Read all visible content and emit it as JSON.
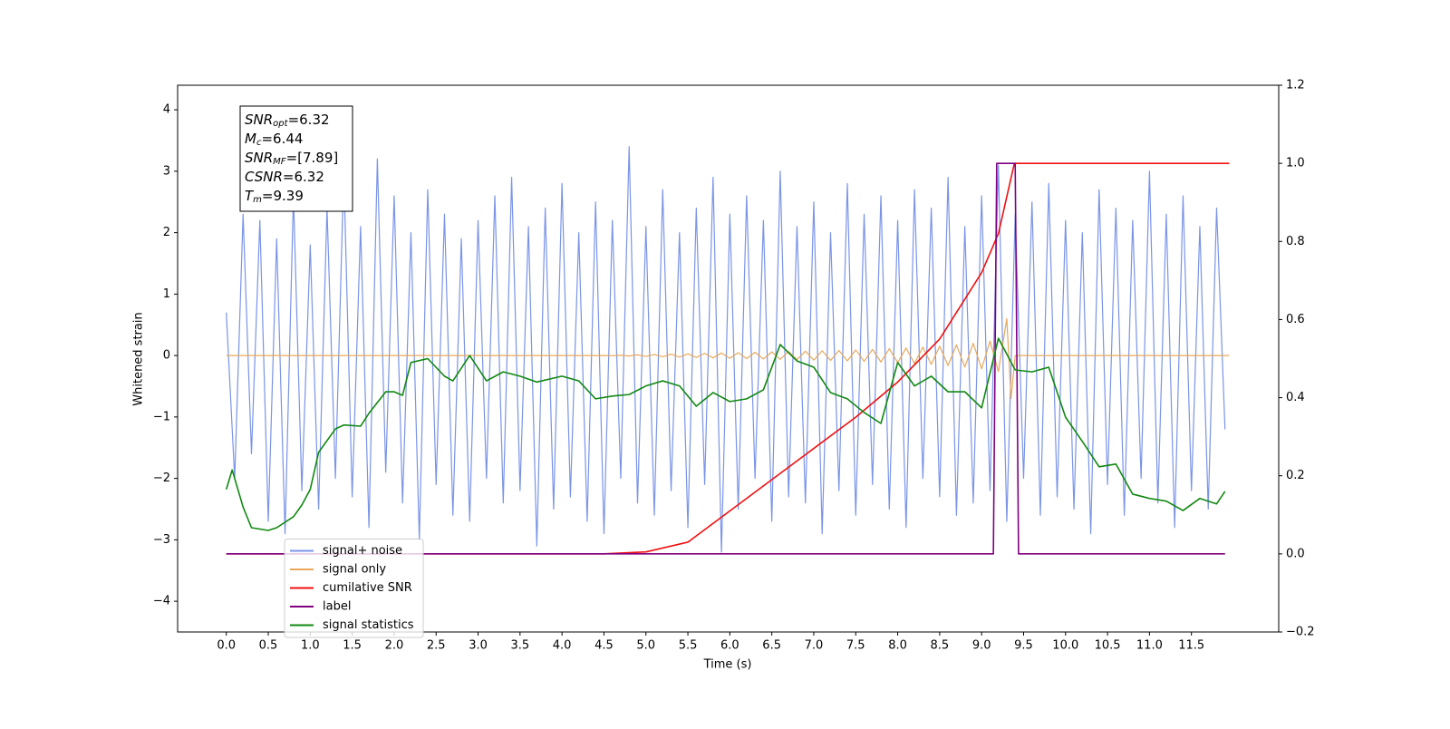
{
  "chart_data": {
    "type": "line",
    "xlabel": "Time (s)",
    "ylabel": "Whitened strain",
    "xlim": [
      -0.58,
      12.54
    ],
    "ylim": [
      -4.5,
      4.4
    ],
    "y2lim": [
      -0.2,
      1.2
    ],
    "xticks": [
      {
        "value": 0,
        "label": "0.0"
      },
      {
        "value": 0.5,
        "label": "0.5"
      },
      {
        "value": 1,
        "label": "1.0"
      },
      {
        "value": 1.5,
        "label": "1.5"
      },
      {
        "value": 2,
        "label": "2.0"
      },
      {
        "value": 2.5,
        "label": "2.5"
      },
      {
        "value": 3,
        "label": "3.0"
      },
      {
        "value": 3.5,
        "label": "3.5"
      },
      {
        "value": 4,
        "label": "4.0"
      },
      {
        "value": 4.5,
        "label": "4.5"
      },
      {
        "value": 5,
        "label": "5.0"
      },
      {
        "value": 5.5,
        "label": "5.5"
      },
      {
        "value": 6,
        "label": "6.0"
      },
      {
        "value": 6.5,
        "label": "6.5"
      },
      {
        "value": 7,
        "label": "7.0"
      },
      {
        "value": 7.5,
        "label": "7.5"
      },
      {
        "value": 8,
        "label": "8.0"
      },
      {
        "value": 8.5,
        "label": "8.5"
      },
      {
        "value": 9,
        "label": "9.0"
      },
      {
        "value": 9.5,
        "label": "9.5"
      },
      {
        "value": 10,
        "label": "10.0"
      },
      {
        "value": 10.5,
        "label": "10.5"
      },
      {
        "value": 11,
        "label": "11.0"
      },
      {
        "value": 11.5,
        "label": "11.5"
      }
    ],
    "yticks": [
      {
        "value": -4,
        "label": "−4"
      },
      {
        "value": -3,
        "label": "−3"
      },
      {
        "value": -2,
        "label": "−2"
      },
      {
        "value": -1,
        "label": "−1"
      },
      0,
      1,
      2,
      3,
      4
    ],
    "y2ticks": [
      {
        "value": -0.2,
        "label": "−0.2"
      },
      {
        "value": 0,
        "label": "0.0"
      },
      {
        "value": 0.2,
        "label": "0.2"
      },
      {
        "value": 0.4,
        "label": "0.4"
      },
      {
        "value": 0.6,
        "label": "0.6"
      },
      {
        "value": 0.8,
        "label": "0.8"
      },
      {
        "value": 1,
        "label": "1.0"
      },
      {
        "value": 1.2,
        "label": "1.2"
      }
    ],
    "legend": "lower left",
    "annotations": [
      {
        "symbol": "SNR",
        "subscript": "opt",
        "text": "=6.32"
      },
      {
        "symbol": "M",
        "subscript": "c",
        "text": "=6.44"
      },
      {
        "symbol": "SNR",
        "subscript": "MF",
        "text": "=[7.89]"
      },
      {
        "symbol": "CSNR",
        "text": "=6.32"
      },
      {
        "symbol": "T",
        "subscript": "m",
        "text": "=9.39"
      }
    ],
    "series": [
      {
        "name": "signal+ noise",
        "color": "#7a94e8",
        "x": [
          0,
          0.1,
          0.2,
          0.3,
          0.4,
          0.5,
          0.6,
          0.7,
          0.8,
          0.9,
          1,
          1.1,
          1.2,
          1.3,
          1.4,
          1.5,
          1.6,
          1.7,
          1.8,
          1.9,
          2,
          2.1,
          2.2,
          2.3,
          2.4,
          2.5,
          2.6,
          2.7,
          2.8,
          2.9,
          3,
          3.1,
          3.2,
          3.3,
          3.4,
          3.5,
          3.6,
          3.7,
          3.8,
          3.9,
          4,
          4.1,
          4.2,
          4.3,
          4.4,
          4.5,
          4.6,
          4.7,
          4.8,
          4.9,
          5,
          5.1,
          5.2,
          5.3,
          5.4,
          5.5,
          5.6,
          5.7,
          5.8,
          5.9,
          6,
          6.1,
          6.2,
          6.3,
          6.4,
          6.5,
          6.6,
          6.7,
          6.8,
          6.9,
          7,
          7.1,
          7.2,
          7.3,
          7.4,
          7.5,
          7.6,
          7.7,
          7.8,
          7.9,
          8,
          8.1,
          8.2,
          8.3,
          8.4,
          8.5,
          8.6,
          8.7,
          8.8,
          8.9,
          9,
          9.1,
          9.2,
          9.3,
          9.4,
          9.5,
          9.6,
          9.7,
          9.8,
          9.9,
          10,
          10.1,
          10.2,
          10.3,
          10.4,
          10.5,
          10.6,
          10.7,
          10.8,
          10.9,
          11,
          11.1,
          11.2,
          11.3,
          11.4,
          11.5,
          11.6,
          11.7,
          11.8,
          11.9
        ],
        "values": [
          0.7,
          -2.0,
          2.3,
          -1.6,
          2.2,
          -2.7,
          1.9,
          -2.9,
          2.6,
          -2.2,
          1.8,
          -2.5,
          2.4,
          -2.0,
          3.0,
          -2.3,
          2.1,
          -2.8,
          3.2,
          -1.9,
          2.6,
          -2.4,
          2.0,
          -3.0,
          2.7,
          -2.1,
          2.3,
          -2.6,
          1.9,
          -2.7,
          2.2,
          -2.0,
          2.6,
          -2.4,
          2.9,
          -2.2,
          2.1,
          -3.1,
          2.4,
          -2.5,
          2.8,
          -2.3,
          2.0,
          -2.7,
          2.5,
          -2.9,
          2.2,
          -2.0,
          3.4,
          -2.4,
          2.1,
          -2.6,
          2.7,
          -2.2,
          2.0,
          -2.8,
          2.4,
          -2.1,
          2.9,
          -3.2,
          2.3,
          -2.5,
          2.6,
          -2.0,
          2.2,
          -2.7,
          3.0,
          -2.3,
          2.1,
          -2.4,
          2.5,
          -2.9,
          2.0,
          -2.2,
          2.8,
          -2.6,
          2.3,
          -2.1,
          2.6,
          -2.5,
          2.2,
          -2.8,
          2.7,
          -2.0,
          2.4,
          -2.3,
          2.9,
          -2.6,
          2.1,
          -2.4,
          2.6,
          -2.2,
          3.1,
          -2.7,
          2.3,
          -2.0,
          2.5,
          -2.6,
          2.8,
          -2.3,
          2.2,
          -2.5,
          2.0,
          -2.9,
          2.7,
          -2.1,
          2.4,
          -2.6,
          2.2,
          -2.0,
          3.0,
          -2.4,
          2.3,
          -2.8,
          2.6,
          -2.2,
          2.1,
          -2.5,
          2.4,
          -1.2
        ]
      },
      {
        "name": "signal only",
        "color": "#e8a85a",
        "x": [
          0,
          4.5,
          4.6,
          4.7,
          4.8,
          4.9,
          5,
          5.1,
          5.2,
          5.3,
          5.4,
          5.5,
          5.6,
          5.7,
          5.8,
          5.9,
          6,
          6.1,
          6.2,
          6.3,
          6.4,
          6.5,
          6.6,
          6.7,
          6.8,
          6.9,
          7,
          7.1,
          7.2,
          7.3,
          7.4,
          7.5,
          7.6,
          7.7,
          7.8,
          7.9,
          8,
          8.1,
          8.2,
          8.3,
          8.4,
          8.5,
          8.6,
          8.7,
          8.8,
          8.9,
          9,
          9.1,
          9.2,
          9.3,
          9.35,
          9.4,
          11.95
        ],
        "values": [
          0,
          0,
          -0.003,
          0.005,
          -0.008,
          0.011,
          -0.014,
          0.017,
          -0.02,
          0.023,
          -0.026,
          0.029,
          -0.032,
          0.035,
          -0.038,
          0.041,
          -0.044,
          0.047,
          -0.05,
          0.053,
          -0.056,
          0.059,
          -0.062,
          0.065,
          -0.068,
          0.071,
          -0.074,
          0.077,
          -0.08,
          0.083,
          -0.087,
          0.091,
          -0.095,
          0.1,
          -0.105,
          0.11,
          -0.116,
          0.122,
          -0.129,
          0.136,
          -0.144,
          0.153,
          -0.163,
          0.174,
          -0.187,
          0.2,
          -0.216,
          0.235,
          -0.26,
          0.6,
          -0.7,
          0,
          0
        ]
      },
      {
        "name": "cumilative SNR",
        "color": "#ee1111",
        "axis": "y2",
        "x": [
          0,
          4.5,
          5,
          5.5,
          6,
          6.5,
          7,
          7.5,
          8,
          8.5,
          9,
          9.2,
          9.39,
          11.95
        ],
        "values": [
          0,
          0,
          0.005,
          0.03,
          0.11,
          0.19,
          0.27,
          0.35,
          0.44,
          0.55,
          0.72,
          0.82,
          1,
          1
        ]
      },
      {
        "name": "label",
        "color": "#800080",
        "axis": "y2",
        "x": [
          0,
          9.14,
          9.18,
          9.4,
          9.44,
          11.9
        ],
        "values": [
          0,
          0,
          1,
          1,
          0,
          0
        ]
      },
      {
        "name": "signal statistics",
        "color": "#118811",
        "axis": "y2",
        "x": [
          0,
          0.07,
          0.2,
          0.3,
          0.5,
          0.6,
          0.8,
          0.9,
          1,
          1.1,
          1.3,
          1.4,
          1.6,
          1.7,
          1.9,
          2,
          2.1,
          2.2,
          2.4,
          2.6,
          2.7,
          2.9,
          3.1,
          3.3,
          3.5,
          3.7,
          4,
          4.2,
          4.4,
          4.6,
          4.8,
          5,
          5.2,
          5.4,
          5.6,
          5.8,
          6,
          6.2,
          6.4,
          6.6,
          6.8,
          7,
          7.2,
          7.4,
          7.6,
          7.8,
          8,
          8.2,
          8.4,
          8.6,
          8.8,
          9,
          9.2,
          9.4,
          9.6,
          9.8,
          10,
          10.2,
          10.4,
          10.6,
          10.8,
          11,
          11.2,
          11.4,
          11.6,
          11.8,
          11.9
        ],
        "values": [
          0.165,
          0.215,
          0.12,
          0.067,
          0.06,
          0.067,
          0.095,
          0.125,
          0.165,
          0.26,
          0.32,
          0.33,
          0.327,
          0.36,
          0.415,
          0.415,
          0.406,
          0.49,
          0.5,
          0.455,
          0.443,
          0.508,
          0.443,
          0.466,
          0.455,
          0.44,
          0.455,
          0.443,
          0.397,
          0.404,
          0.408,
          0.43,
          0.443,
          0.43,
          0.378,
          0.413,
          0.39,
          0.397,
          0.42,
          0.536,
          0.494,
          0.478,
          0.413,
          0.397,
          0.362,
          0.334,
          0.49,
          0.43,
          0.455,
          0.415,
          0.415,
          0.374,
          0.552,
          0.471,
          0.466,
          0.478,
          0.35,
          0.288,
          0.223,
          0.23,
          0.153,
          0.142,
          0.135,
          0.111,
          0.142,
          0.128,
          0.16
        ]
      }
    ]
  }
}
